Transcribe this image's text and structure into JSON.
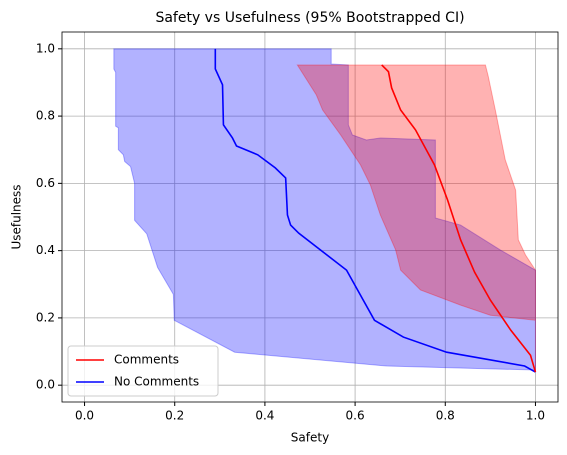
{
  "chart_data": {
    "type": "line",
    "title": "Safety vs Usefulness (95% Bootstrapped CI)",
    "x_label": "Safety",
    "y_label": "Usefulness",
    "xlim": [
      -0.05,
      1.05
    ],
    "ylim": [
      -0.05,
      1.05
    ],
    "xticks": [
      {
        "value": 0,
        "label": "0.0"
      },
      {
        "value": 0.2,
        "label": "0.2"
      },
      {
        "value": 0.4,
        "label": "0.4"
      },
      {
        "value": 0.6,
        "label": "0.6"
      },
      {
        "value": 0.8,
        "label": "0.8"
      },
      {
        "value": 1,
        "label": "1.0"
      }
    ],
    "yticks": [
      {
        "value": 0,
        "label": "0.0"
      },
      {
        "value": 0.2,
        "label": "0.2"
      },
      {
        "value": 0.4,
        "label": "0.4"
      },
      {
        "value": 0.6,
        "label": "0.6"
      },
      {
        "value": 0.8,
        "label": "0.8"
      },
      {
        "value": 1,
        "label": "1.0"
      }
    ],
    "grid": true,
    "legend": "lower left",
    "series": [
      {
        "name": "Comments",
        "color": "#ff0000",
        "x": [
          0.659,
          0.674,
          0.681,
          0.701,
          0.734,
          0.776,
          0.805,
          0.834,
          0.865,
          0.9,
          0.945,
          0.989,
          1.0
        ],
        "values": [
          0.952,
          0.932,
          0.884,
          0.818,
          0.759,
          0.655,
          0.551,
          0.432,
          0.336,
          0.253,
          0.164,
          0.089,
          0.039
        ],
        "band": {
          "left": {
            "x": [
              0.472,
              0.514,
              0.528,
              0.568,
              0.612,
              0.634,
              0.656,
              0.69,
              0.701,
              0.745,
              0.834,
              0.9,
              1.0,
              1.0
            ],
            "y": [
              0.952,
              0.863,
              0.818,
              0.744,
              0.655,
              0.595,
              0.506,
              0.402,
              0.342,
              0.283,
              0.238,
              0.208,
              0.193,
              0.039
            ]
          },
          "right": {
            "x": [
              0.889,
              0.895,
              0.911,
              0.933,
              0.956,
              0.962,
              0.978,
              1.0,
              1.0
            ],
            "y": [
              0.952,
              0.92,
              0.818,
              0.67,
              0.58,
              0.432,
              0.387,
              0.342,
              0.039
            ]
          }
        }
      },
      {
        "name": "No Comments",
        "color": "#0000ff",
        "x": [
          0.29,
          0.29,
          0.306,
          0.308,
          0.328,
          0.337,
          0.384,
          0.423,
          0.446,
          0.45,
          0.457,
          0.475,
          0.581,
          0.643,
          0.707,
          0.803,
          0.976,
          1.0
        ],
        "values": [
          1.0,
          0.94,
          0.893,
          0.774,
          0.735,
          0.711,
          0.685,
          0.646,
          0.616,
          0.506,
          0.476,
          0.452,
          0.342,
          0.193,
          0.143,
          0.098,
          0.057,
          0.039
        ],
        "band": {
          "left": {
            "x": [
              0.065,
              0.065,
              0.069,
              0.069,
              0.075,
              0.075,
              0.086,
              0.089,
              0.102,
              0.111,
              0.111,
              0.138,
              0.162,
              0.197,
              0.199,
              0.333,
              0.67,
              1.0
            ],
            "y": [
              1.0,
              0.94,
              0.93,
              0.77,
              0.765,
              0.7,
              0.685,
              0.665,
              0.65,
              0.6,
              0.49,
              0.45,
              0.35,
              0.27,
              0.193,
              0.098,
              0.057,
              0.045
            ]
          },
          "right": {
            "x": [
              0.547,
              0.547,
              0.585,
              0.585,
              0.594,
              0.625,
              0.656,
              0.778,
              0.778,
              0.834,
              0.922,
              1.0,
              1.0
            ],
            "y": [
              1.0,
              0.955,
              0.952,
              0.774,
              0.744,
              0.729,
              0.735,
              0.729,
              0.497,
              0.476,
              0.402,
              0.342,
              0.045
            ]
          }
        }
      }
    ]
  }
}
